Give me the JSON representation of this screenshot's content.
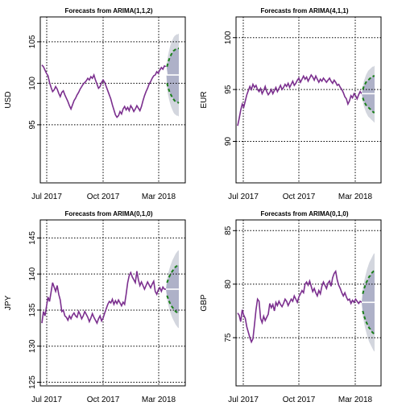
{
  "chart_data": [
    {
      "type": "line",
      "title": "Forecasts from ARIMA(1,1,2)",
      "ylabel": "USD",
      "xlabel": "",
      "ylim": [
        88,
        108
      ],
      "yticks": [
        95,
        100,
        105
      ],
      "x_tick_labels": [
        "Jul 2017",
        "Oct 2017",
        "Mar 2018"
      ],
      "grid": true,
      "series": [
        {
          "role": "history",
          "color": "#7b2f8e",
          "values": [
            102.2,
            102.0,
            101.6,
            101.2,
            100.9,
            100.1,
            99.5,
            99.0,
            99.2,
            99.6,
            99.3,
            98.8,
            98.4,
            98.9,
            99.1,
            98.6,
            98.2,
            97.8,
            97.3,
            96.9,
            97.4,
            97.9,
            98.2,
            98.6,
            98.9,
            99.3,
            99.6,
            99.9,
            100.1,
            100.3,
            100.6,
            100.4,
            100.8,
            100.6,
            101.0,
            100.4,
            99.9,
            99.4,
            99.6,
            100.1,
            100.4,
            100.1,
            99.6,
            99.1,
            98.6,
            98.1,
            97.4,
            96.8,
            96.2,
            95.9,
            96.1,
            96.6,
            96.3,
            96.9,
            97.2,
            96.8,
            97.1,
            96.7,
            97.3,
            97.0,
            96.6,
            96.9,
            97.3,
            97.0,
            96.7,
            97.2,
            97.9,
            98.5,
            99.0,
            99.4,
            99.9,
            100.2,
            100.6,
            100.9,
            101.0,
            101.4,
            101.2,
            101.6,
            101.9,
            101.7,
            102.1,
            102.0
          ]
        },
        {
          "role": "forecast",
          "color": "#ffffff",
          "values": [
            101.0,
            101.0,
            101.0,
            101.0,
            101.0,
            101.0,
            101.0,
            101.0,
            101.0,
            101.0,
            101.0,
            101.0
          ]
        },
        {
          "role": "upper_80",
          "color": "#1a7f1a",
          "values": [
            102.0,
            102.5,
            102.9,
            103.2,
            103.5,
            103.7,
            103.9,
            104.0,
            104.1,
            104.2,
            104.2,
            104.2
          ]
        },
        {
          "role": "lower_80",
          "color": "#1a7f1a",
          "values": [
            100.0,
            99.5,
            99.1,
            98.8,
            98.5,
            98.3,
            98.1,
            97.9,
            97.8,
            97.7,
            97.7,
            97.6
          ]
        },
        {
          "role": "upper_95",
          "color": "#d3d6de",
          "values": [
            102.6,
            103.4,
            104.0,
            104.5,
            104.9,
            105.2,
            105.5,
            105.7,
            105.8,
            105.9,
            105.9,
            106.0
          ]
        },
        {
          "role": "lower_95",
          "color": "#d3d6de",
          "values": [
            99.4,
            98.6,
            98.0,
            97.5,
            97.1,
            96.8,
            96.5,
            96.3,
            96.2,
            96.1,
            96.1,
            96.0
          ]
        }
      ]
    },
    {
      "type": "line",
      "title": "Forecasts from ARIMA(4,1,1)",
      "ylabel": "EUR",
      "xlabel": "",
      "ylim": [
        86,
        102
      ],
      "yticks": [
        90,
        95,
        100
      ],
      "x_tick_labels": [
        "Jul 2017",
        "Oct 2017",
        "Mar 2018"
      ],
      "grid": true,
      "series": [
        {
          "role": "history",
          "color": "#7b2f8e",
          "values": [
            91.5,
            92.2,
            93.0,
            93.6,
            93.3,
            93.9,
            94.5,
            94.9,
            95.3,
            95.0,
            95.5,
            95.2,
            95.4,
            95.0,
            94.8,
            95.1,
            94.6,
            94.9,
            95.3,
            94.8,
            94.5,
            94.7,
            95.0,
            94.6,
            94.9,
            95.2,
            94.8,
            95.1,
            95.4,
            95.0,
            95.2,
            95.5,
            95.3,
            95.6,
            95.2,
            95.5,
            95.8,
            95.4,
            95.6,
            95.9,
            96.1,
            95.7,
            96.0,
            96.3,
            96.0,
            96.2,
            95.8,
            96.1,
            96.4,
            96.2,
            95.9,
            96.3,
            96.0,
            95.7,
            96.0,
            95.8,
            96.1,
            95.9,
            95.7,
            95.9,
            96.1,
            95.8,
            95.6,
            95.9,
            95.7,
            95.4,
            95.5,
            95.2,
            95.0,
            94.7,
            94.3,
            94.1,
            93.6,
            93.9,
            94.4,
            94.2,
            94.6,
            94.4,
            94.1,
            94.5,
            94.8,
            94.6
          ]
        },
        {
          "role": "forecast",
          "color": "#ffffff",
          "values": [
            94.6,
            94.6,
            94.6,
            94.6,
            94.6,
            94.6,
            94.6,
            94.6,
            94.6,
            94.6,
            94.6,
            94.6
          ]
        },
        {
          "role": "upper_80",
          "color": "#1a7f1a",
          "values": [
            95.0,
            95.3,
            95.5,
            95.7,
            95.8,
            95.9,
            96.0,
            96.1,
            96.2,
            96.2,
            96.3,
            96.3
          ]
        },
        {
          "role": "lower_80",
          "color": "#1a7f1a",
          "values": [
            94.2,
            93.9,
            93.7,
            93.5,
            93.4,
            93.3,
            93.2,
            93.1,
            93.0,
            92.9,
            92.8,
            92.8
          ]
        },
        {
          "role": "upper_95",
          "color": "#d3d6de",
          "values": [
            95.3,
            95.8,
            96.1,
            96.4,
            96.6,
            96.8,
            96.9,
            97.0,
            97.1,
            97.2,
            97.2,
            97.3
          ]
        },
        {
          "role": "lower_95",
          "color": "#d3d6de",
          "values": [
            93.9,
            93.4,
            93.1,
            92.8,
            92.6,
            92.4,
            92.3,
            92.2,
            92.1,
            92.0,
            91.9,
            91.8
          ]
        }
      ]
    },
    {
      "type": "line",
      "title": "Forecasts from ARIMA(0,1,0)",
      "ylabel": "JPY",
      "xlabel": "",
      "ylim": [
        124.5,
        147.5
      ],
      "yticks": [
        125,
        130,
        135,
        140,
        145
      ],
      "x_tick_labels": [
        "Jul 2017",
        "Oct 2017",
        "Mar 2018"
      ],
      "grid": true,
      "series": [
        {
          "role": "history",
          "color": "#7b2f8e",
          "values": [
            133.2,
            134.8,
            134.2,
            135.5,
            136.8,
            136.2,
            137.5,
            138.8,
            138.2,
            137.6,
            138.4,
            137.2,
            136.4,
            134.8,
            135.0,
            134.2,
            134.0,
            133.6,
            134.2,
            133.8,
            134.3,
            134.6,
            134.2,
            134.0,
            134.8,
            134.4,
            133.8,
            134.2,
            134.8,
            134.4,
            134.0,
            133.4,
            133.9,
            134.5,
            134.0,
            133.6,
            133.2,
            133.8,
            134.2,
            133.5,
            133.9,
            134.6,
            135.2,
            135.8,
            136.2,
            136.0,
            136.5,
            135.8,
            136.3,
            135.9,
            136.4,
            136.0,
            135.6,
            136.1,
            135.8,
            137.2,
            138.8,
            139.8,
            140.2,
            139.6,
            139.2,
            138.8,
            140.4,
            139.2,
            138.4,
            138.9,
            138.4,
            137.9,
            138.4,
            138.9,
            138.5,
            138.1,
            138.6,
            139.0,
            137.6,
            137.2,
            137.8,
            138.1,
            137.6,
            138.2,
            137.9,
            137.9
          ]
        },
        {
          "role": "forecast",
          "color": "#ffffff",
          "values": [
            137.9,
            137.9,
            137.9,
            137.9,
            137.9,
            137.9,
            137.9,
            137.9,
            137.9,
            137.9,
            137.9,
            137.9
          ]
        },
        {
          "role": "upper_80",
          "color": "#1a7f1a",
          "values": [
            138.8,
            139.2,
            139.6,
            139.9,
            140.2,
            140.4,
            140.6,
            140.8,
            141.0,
            141.1,
            141.2,
            141.2
          ]
        },
        {
          "role": "lower_80",
          "color": "#1a7f1a",
          "values": [
            137.0,
            136.6,
            136.2,
            135.9,
            135.6,
            135.4,
            135.2,
            135.0,
            134.8,
            134.7,
            134.6,
            134.6
          ]
        },
        {
          "role": "upper_95",
          "color": "#d3d6de",
          "values": [
            139.3,
            140.0,
            140.6,
            141.1,
            141.5,
            141.9,
            142.2,
            142.5,
            142.8,
            143.0,
            143.2,
            143.3
          ]
        },
        {
          "role": "lower_95",
          "color": "#d3d6de",
          "values": [
            136.5,
            135.8,
            135.2,
            134.7,
            134.3,
            133.9,
            133.6,
            133.3,
            133.0,
            132.8,
            132.6,
            132.5
          ]
        }
      ]
    },
    {
      "type": "line",
      "title": "Forecasts from ARIMA(0,1,0)",
      "ylabel": "GBP",
      "xlabel": "",
      "ylim": [
        70.5,
        86
      ],
      "yticks": [
        75,
        80,
        85
      ],
      "x_tick_labels": [
        "Jul 2017",
        "Oct 2017",
        "Mar 2018"
      ],
      "grid": true,
      "series": [
        {
          "role": "history",
          "color": "#7b2f8e",
          "values": [
            77.3,
            77.1,
            76.5,
            77.6,
            77.1,
            76.8,
            76.0,
            75.5,
            75.0,
            74.6,
            74.9,
            76.2,
            77.6,
            78.6,
            78.4,
            76.8,
            76.4,
            77.0,
            76.6,
            76.9,
            77.2,
            78.2,
            77.8,
            78.1,
            77.5,
            78.3,
            78.0,
            78.4,
            78.1,
            77.9,
            78.2,
            78.6,
            78.4,
            78.0,
            78.3,
            78.6,
            78.4,
            78.9,
            78.6,
            78.3,
            78.8,
            79.1,
            79.4,
            79.2,
            80.0,
            80.2,
            79.9,
            80.3,
            79.8,
            79.3,
            79.6,
            79.2,
            78.9,
            79.4,
            79.1,
            79.8,
            80.2,
            79.9,
            79.6,
            80.1,
            80.3,
            79.8,
            80.6,
            81.0,
            81.2,
            80.4,
            79.9,
            79.6,
            79.2,
            78.9,
            79.2,
            78.8,
            78.5,
            78.6,
            78.2,
            78.5,
            78.3,
            78.6,
            78.4,
            78.2,
            78.4,
            78.3
          ]
        },
        {
          "role": "forecast",
          "color": "#ffffff",
          "values": [
            78.3,
            78.3,
            78.3,
            78.3,
            78.3,
            78.3,
            78.3,
            78.3,
            78.3,
            78.3,
            78.3,
            78.3
          ]
        },
        {
          "role": "upper_80",
          "color": "#1a7f1a",
          "values": [
            79.1,
            79.5,
            79.8,
            80.1,
            80.3,
            80.5,
            80.7,
            80.8,
            81.0,
            81.1,
            81.2,
            81.2
          ]
        },
        {
          "role": "lower_80",
          "color": "#1a7f1a",
          "values": [
            77.5,
            77.1,
            76.8,
            76.5,
            76.3,
            76.1,
            75.9,
            75.8,
            75.6,
            75.5,
            75.4,
            75.3
          ]
        },
        {
          "role": "upper_95",
          "color": "#d3d6de",
          "values": [
            79.6,
            80.1,
            80.6,
            81.0,
            81.4,
            81.7,
            82.0,
            82.2,
            82.4,
            82.6,
            82.8,
            82.9
          ]
        },
        {
          "role": "lower_95",
          "color": "#d3d6de",
          "values": [
            77.0,
            76.5,
            76.0,
            75.6,
            75.2,
            74.9,
            74.6,
            74.4,
            74.2,
            74.0,
            73.8,
            73.7
          ]
        }
      ]
    }
  ]
}
